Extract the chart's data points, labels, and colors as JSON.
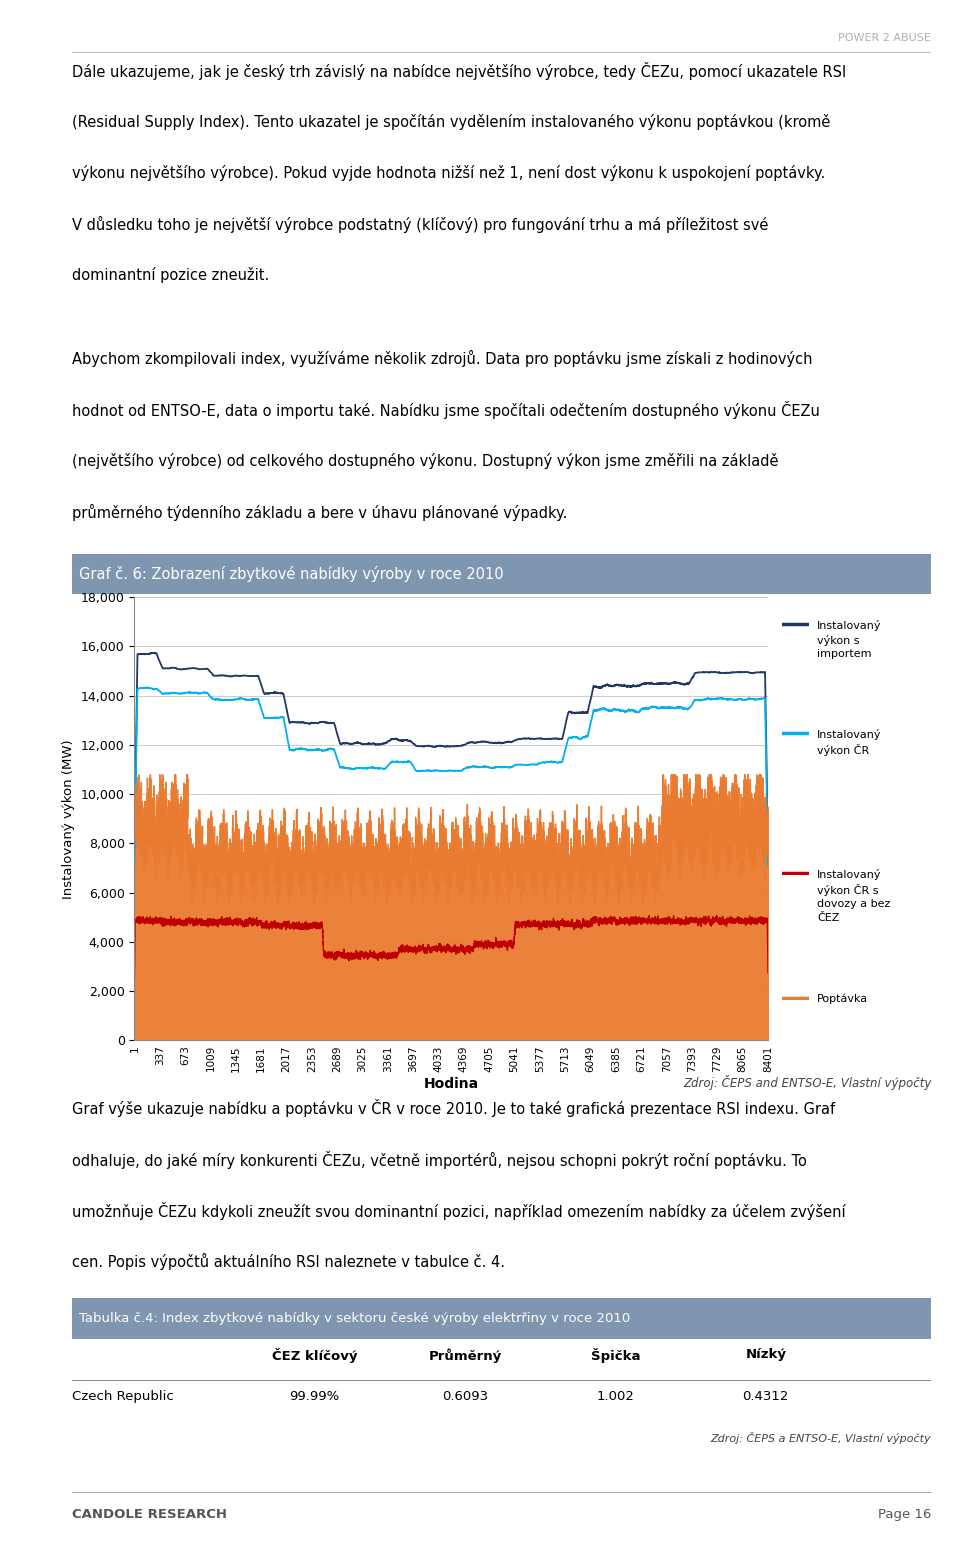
{
  "page_title": "POWER 2 ABUSE",
  "para1_lines": [
    "Dále ukazujeme, jak je český trh závislý na nabídce největšího výrobce, tedy ČEZu, pomocí ukazatele RSI",
    "(Residual Supply Index). Tento ukazatel je spočítán vydělením instalovaného výkonu poptávkou (kromě",
    "výkonu největšího výrobce). Pokud vyjde hodnota nižší než 1, není dost výkonu k uspokojení poptávky.",
    "V důsledku toho je největší výrobce podstatný (klíčový) pro fungování trhu a má příležitost své",
    "dominantní pozice zneužit."
  ],
  "para2_lines": [
    "Abychom zkompilovali index, využíváme několik zdrojů. Data pro poptávku jsme získali z hodinových",
    "hodnot od ENTSO-E, data o importu také. Nabídku jsme spočítali odečtením dostupného výkonu ČEZu",
    "(největšího výrobce) od celkového dostupného výkonu. Dostupný výkon jsme změřili na základě",
    "průměrného týdenního základu a bere v úhavu plánované výpadky."
  ],
  "chart_title": "Graf č. 6: Zobrazení zbytkové nabídky výroby v roce 2010",
  "chart_title_bg": "#7f96b0",
  "chart_title_color": "#ffffff",
  "xlabel": "Hodina",
  "ylabel": "Instalovaný výkon (MW)",
  "ylim": [
    0,
    18000
  ],
  "yticks": [
    0,
    2000,
    4000,
    6000,
    8000,
    10000,
    12000,
    14000,
    16000,
    18000
  ],
  "xtick_labels": [
    "1",
    "337",
    "673",
    "1009",
    "1345",
    "1681",
    "2017",
    "2353",
    "2689",
    "3025",
    "3361",
    "3697",
    "4033",
    "4369",
    "4705",
    "5041",
    "5377",
    "5713",
    "6049",
    "6385",
    "6721",
    "7057",
    "7393",
    "7729",
    "8065",
    "8401"
  ],
  "legend_labels": [
    "Instalovaný výkon s importem",
    "Instalovaný výkon ČR",
    "Instalovaný výkon ČR s dovozy a bez ČEZ",
    "Poptávka"
  ],
  "legend_colors": [
    "#1f3864",
    "#00b0f0",
    "#c00000",
    "#e97b30"
  ],
  "source_text": "Zdroj: ČEPS and ENTSO-E, Vlastní výpočty",
  "para3_lines": [
    "Graf výše ukazuje nabídku a poptávku v ČR v roce 2010. Je to také grafická prezentace RSI indexu. Graf",
    "odhaluje, do jaké míry konkurenti ČEZu, včetně importérů, nejsou schopni pokrýt roční poptávku. To",
    "umožnňuje ČEZu kdykoli zneužít svou dominantní pozici, například omezením nabídky za účelem zvýšení",
    "cen. Popis výpočtů aktuálního RSI naleznete v tabulce č. 4."
  ],
  "table_title": "Tabulka č.4: Index zbytkové nabídky v sektoru české výroby elektrřiny v roce 2010",
  "table_title_bg": "#7f96b0",
  "table_title_color": "#ffffff",
  "table_headers": [
    "",
    "ČEZ klíčový",
    "Průměrný",
    "Špička",
    "Nízký"
  ],
  "table_row": [
    "Czech Republic",
    "99.99%",
    "0.6093",
    "1.002",
    "0.4312"
  ],
  "table_source": "Zdroj: ČEPS a ENTSO-E, Vlastní výpočty",
  "footer_left": "CANDOLE RESEARCH",
  "footer_right": "Page 16",
  "n_points": 8401
}
